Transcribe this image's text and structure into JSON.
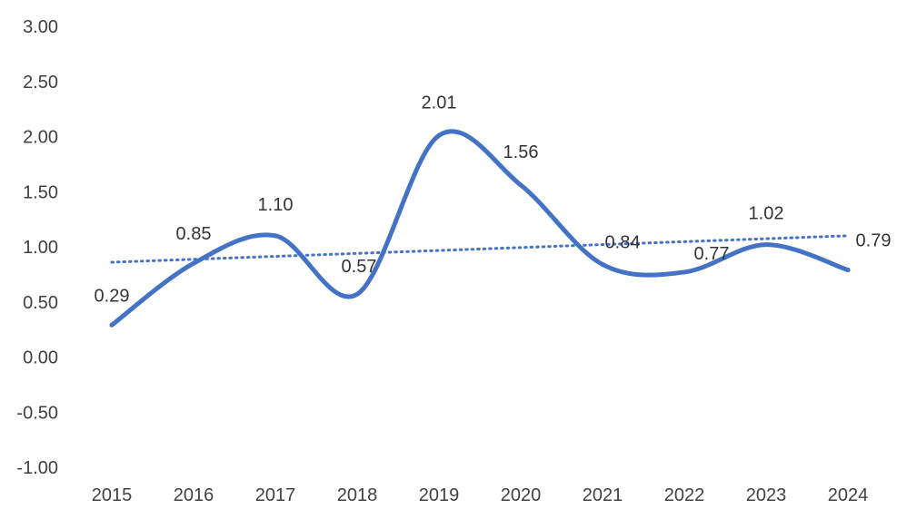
{
  "chart_data": {
    "type": "line",
    "x": [
      "2015",
      "2016",
      "2017",
      "2018",
      "2019",
      "2020",
      "2021",
      "2022",
      "2023",
      "2024"
    ],
    "series": [
      {
        "values": [
          0.29,
          0.85,
          1.1,
          0.57,
          2.01,
          1.56,
          0.84,
          0.77,
          1.02,
          0.79
        ],
        "value_labels": [
          "0.29",
          "0.85",
          "1.10",
          "0.57",
          "2.01",
          "1.56",
          "0.84",
          "0.77",
          "1.02",
          "0.79"
        ],
        "color": "#4472C4",
        "smooth": true
      }
    ],
    "trendline": {
      "type": "linear",
      "style": "dotted",
      "color": "#4472C4"
    },
    "y_ticks": [
      "3.00",
      "2.50",
      "2.00",
      "1.50",
      "1.00",
      "0.50",
      "0.00",
      "-0.50",
      "-1.00"
    ],
    "ylim": [
      -1.0,
      3.0
    ],
    "title": "",
    "xlabel": "",
    "ylabel": "",
    "grid": false,
    "legend": "none"
  }
}
